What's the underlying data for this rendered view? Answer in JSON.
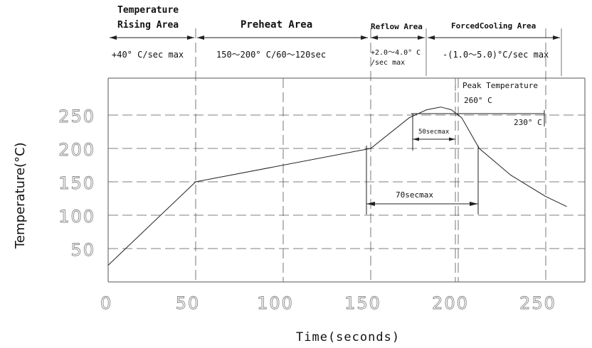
{
  "chart_data": {
    "type": "line",
    "title": "",
    "xlabel": "Time(seconds)",
    "ylabel": "Temperature(°C)",
    "xlim": [
      0,
      275
    ],
    "ylim": [
      0,
      300
    ],
    "x_ticks": [
      "0",
      "50",
      "100",
      "150",
      "200",
      "250"
    ],
    "y_ticks": [
      "50",
      "100",
      "150",
      "200",
      "250"
    ],
    "grid": true,
    "series": [
      {
        "name": "",
        "x": [
          0,
          50,
          150,
          172,
          182,
          190,
          196,
          202,
          212,
          230,
          250,
          262
        ],
        "y": [
          25,
          150,
          200,
          246,
          258,
          262,
          258,
          246,
          200,
          160,
          128,
          113
        ]
      }
    ],
    "areas": [
      {
        "name": "Temperature\nRising Area",
        "rate": "+40° C/sec max"
      },
      {
        "name": "Preheat Area",
        "rate": "150～200° C/60～120sec"
      },
      {
        "name": "Reflow Area",
        "rate": "+2.0～4.0° C\n/sec max"
      },
      {
        "name": "ForcedCooling Area",
        "rate": "-(1.0～5.0)°C/sec max"
      }
    ],
    "annotations": {
      "peak_label": "Peak Temperature",
      "peak_value": "260° C",
      "reference_temp": "230° C",
      "duration_above_230": "50secmax",
      "duration_above_200": "70secmax"
    }
  }
}
